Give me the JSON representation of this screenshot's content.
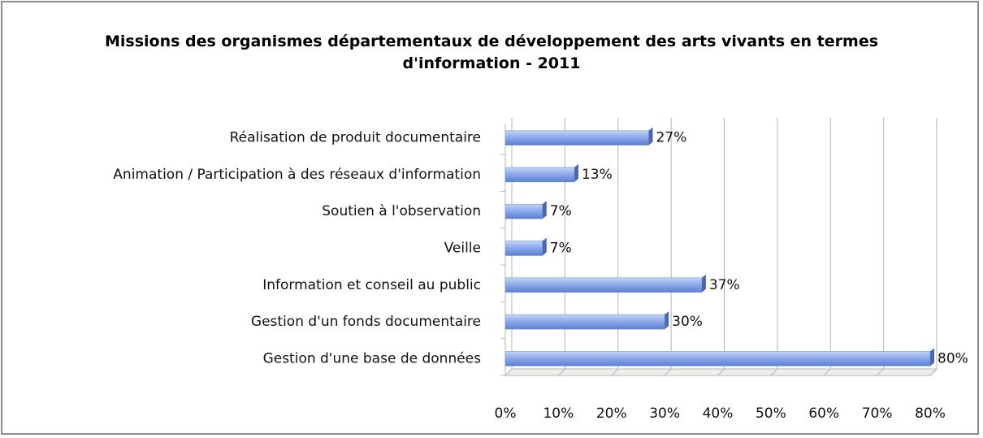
{
  "chart_data": {
    "type": "bar",
    "orientation": "horizontal",
    "title": "Missions des organismes départementaux de développement des arts vivants en termes d'information - 2011",
    "categories": [
      "Réalisation de produit documentaire",
      "Animation / Participation à des réseaux d'information",
      "Soutien à l'observation",
      "Veille",
      "Information et conseil au public",
      "Gestion d'un fonds documentaire",
      "Gestion d'une base de données"
    ],
    "values": [
      27,
      13,
      7,
      7,
      37,
      30,
      80
    ],
    "value_labels": [
      "27%",
      "13%",
      "7%",
      "7%",
      "37%",
      "30%",
      "80%"
    ],
    "color": "#8eabec",
    "xlim": [
      0,
      80
    ],
    "xticks": [
      {
        "value": 0,
        "label": "0%"
      },
      {
        "value": 10,
        "label": "10%"
      },
      {
        "value": 20,
        "label": "20%"
      },
      {
        "value": 30,
        "label": "30%"
      },
      {
        "value": 40,
        "label": "40%"
      },
      {
        "value": 50,
        "label": "50%"
      },
      {
        "value": 60,
        "label": "60%"
      },
      {
        "value": 70,
        "label": "70%"
      },
      {
        "value": 80,
        "label": "80%"
      }
    ],
    "grid": true
  }
}
